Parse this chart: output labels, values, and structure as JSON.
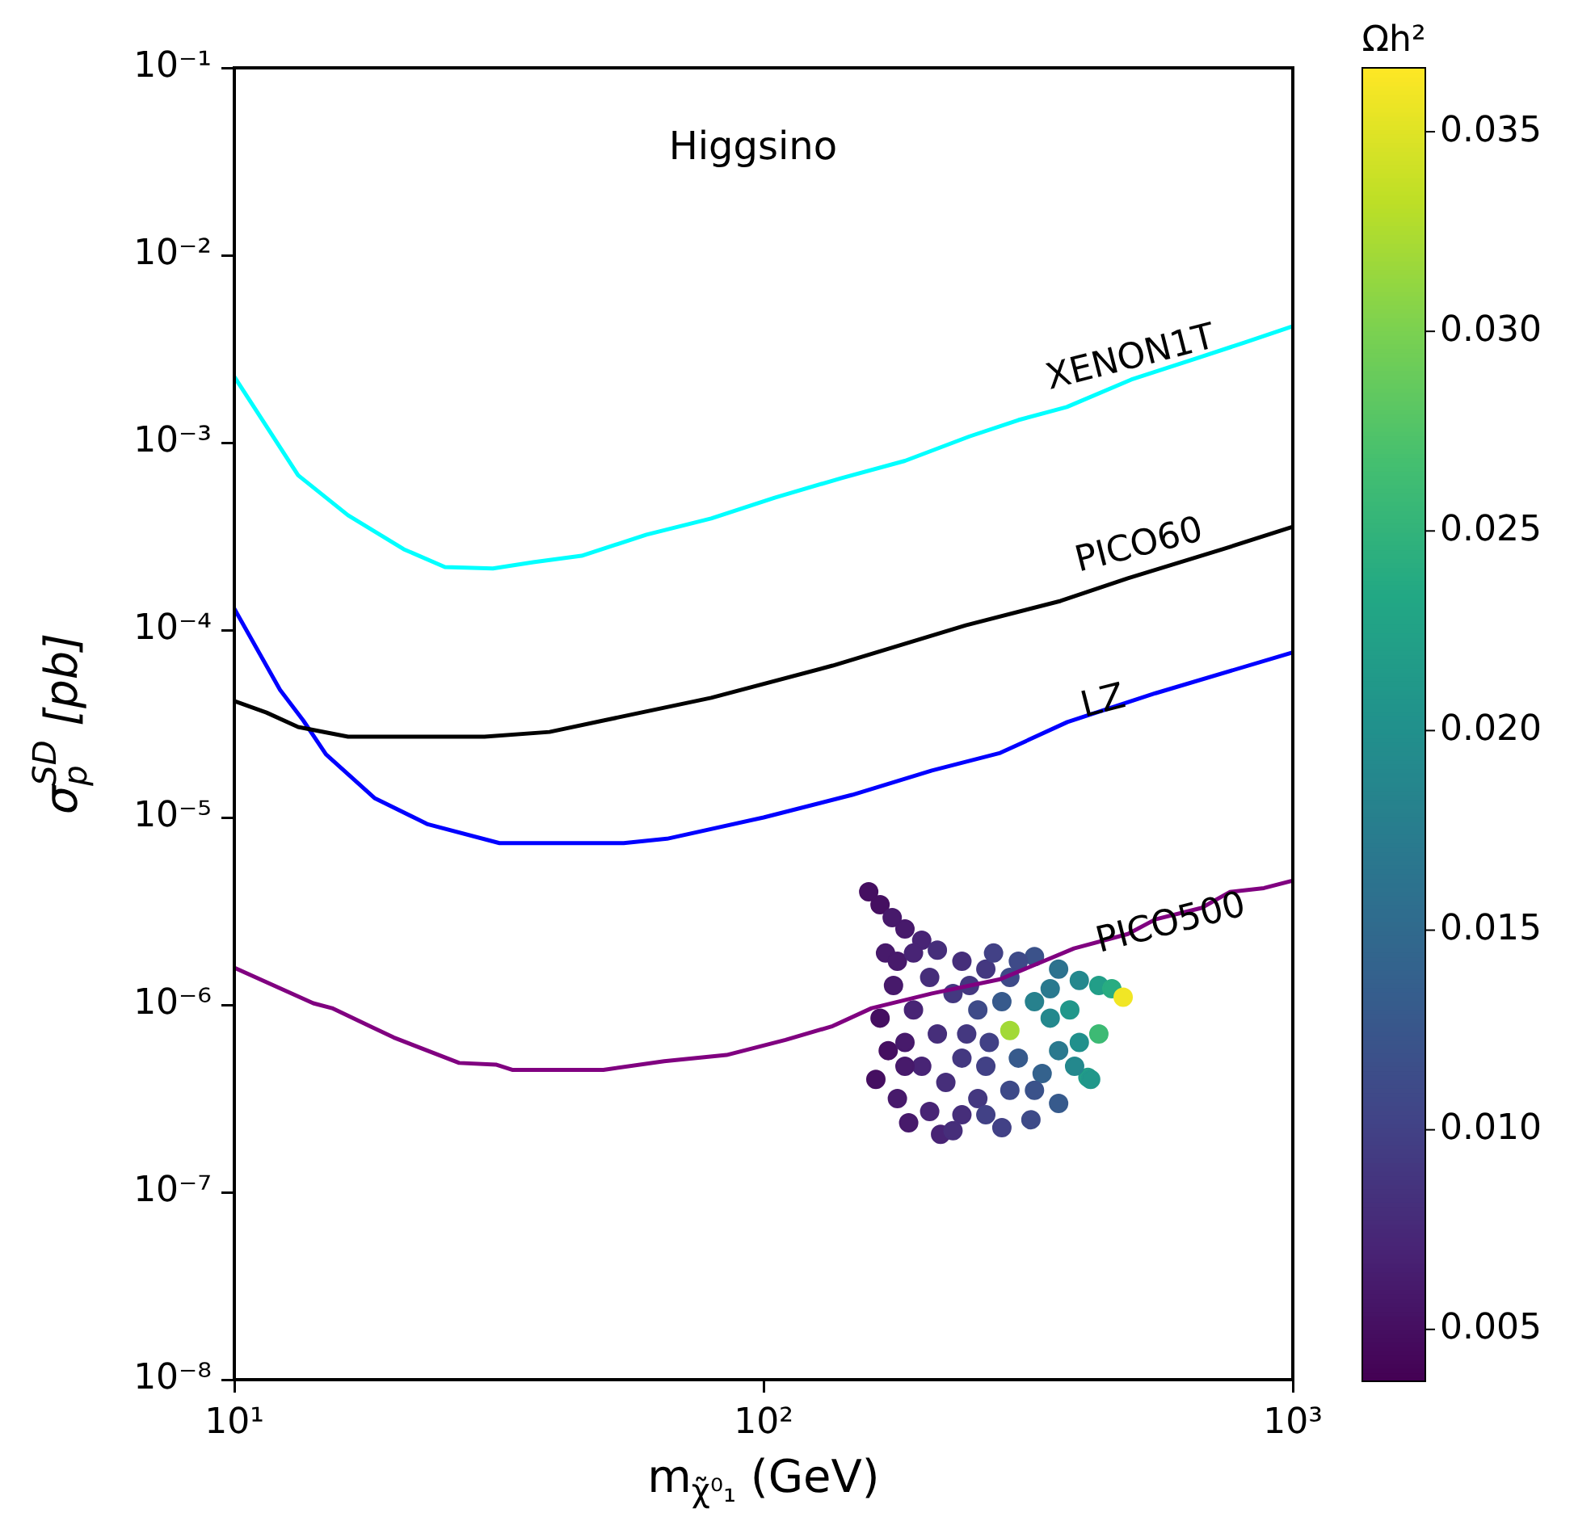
{
  "chart_data": {
    "type": "line",
    "log": "xy",
    "xlabel": "m$_{χ̃⁰₁}$ (GeV)",
    "ylabel": "σ$_{p}$$^{SD}$ [pb]",
    "clabel": "Ωh²",
    "xlim": [
      10,
      1000
    ],
    "xticks": [
      {
        "value": 10,
        "label": "10¹"
      },
      {
        "value": 100,
        "label": "10²"
      },
      {
        "value": 1000,
        "label": "10³"
      }
    ],
    "ylim": [
      1e-08,
      0.1
    ],
    "yticks": [
      {
        "value": 1e-08,
        "label": "10⁻⁸"
      },
      {
        "value": 1e-07,
        "label": "10⁻⁷"
      },
      {
        "value": 1e-06,
        "label": "10⁻⁶"
      },
      {
        "value": 1e-05,
        "label": "10⁻⁵"
      },
      {
        "value": 0.0001,
        "label": "10⁻⁴"
      },
      {
        "value": 0.001,
        "label": "10⁻³"
      },
      {
        "value": 0.01,
        "label": "10⁻²"
      },
      {
        "value": 0.1,
        "label": "10⁻¹"
      }
    ],
    "clim": [
      0.0037,
      0.0366
    ],
    "cticks": [
      0.005,
      {
        "value": 0.01,
        "label": "0.010"
      },
      0.015,
      {
        "value": 0.02,
        "label": "0.020"
      },
      0.025,
      {
        "value": 0.03,
        "label": "0.030"
      },
      0.035
    ],
    "grid": false,
    "legend": false,
    "annotations": [
      "Higgsino",
      "XENON1T",
      "PICO60",
      "LZ",
      "PICO500"
    ],
    "series": [
      {
        "color": "#00ffff",
        "x": [
          10,
          13.2,
          16.4,
          20.9,
          25,
          30.8,
          36.7,
          45.3,
          60.1,
          79.6,
          105,
          140,
          185,
          245,
          303,
          374,
          495,
          656,
          810,
          1000
        ],
        "values": [
          0.00225,
          0.00067,
          0.00041,
          0.00027,
          0.000217,
          0.000213,
          0.00023,
          0.000249,
          0.000323,
          0.000394,
          0.000509,
          0.000646,
          0.0008,
          0.00108,
          0.00132,
          0.00155,
          0.00217,
          0.00281,
          0.00342,
          0.00418
        ]
      },
      {
        "color": "#000000",
        "x": [
          10,
          11.5,
          13.2,
          16.4,
          29.7,
          39.4,
          49.8,
          79.6,
          135,
          241,
          364,
          488,
          737,
          1000
        ],
        "values": [
          4.18e-05,
          3.63e-05,
          3.04e-05,
          2.7e-05,
          2.7e-05,
          2.86e-05,
          3.29e-05,
          4.35e-05,
          6.46e-05,
          0.000106,
          0.000143,
          0.000189,
          0.00027,
          0.000356
        ]
      },
      {
        "color": "#0000ff",
        "x": [
          10,
          12.2,
          13.5,
          14.9,
          18.4,
          23.2,
          31.7,
          54.4,
          65.7,
          100,
          147,
          208,
          280,
          375,
          550,
          1000
        ],
        "values": [
          0.00013,
          4.8e-05,
          3.29e-05,
          2.17e-05,
          1.27e-05,
          9.2e-06,
          7.3e-06,
          7.3e-06,
          7.7e-06,
          1e-05,
          1.32e-05,
          1.78e-05,
          2.21e-05,
          3.23e-05,
          4.6e-05,
          7.6e-05
        ]
      },
      {
        "color": "#800080",
        "x": [
          10,
          14.1,
          15.3,
          20,
          26.6,
          31.2,
          33.5,
          49.8,
          64.9,
          85.1,
          110,
          135,
          160,
          208,
          280,
          386,
          488,
          550,
          672,
          760,
          882,
          1000
        ],
        "values": [
          1.58e-06,
          1.02e-06,
          9.6e-07,
          6.7e-07,
          4.9e-07,
          4.8e-07,
          4.5e-07,
          4.5e-07,
          5e-07,
          5.4e-07,
          6.5e-07,
          7.7e-07,
          9.6e-07,
          1.15e-06,
          1.37e-06,
          2e-06,
          2.39e-06,
          2.86e-06,
          3.29e-06,
          4e-06,
          4.2e-06,
          4.6e-06
        ]
      },
      {
        "type": "scatter",
        "marker": "circle",
        "x": [
          158,
          166,
          175,
          185,
          199,
          213,
          237,
          263,
          292,
          325,
          361,
          395,
          430,
          455,
          478,
          170,
          176,
          166,
          172,
          163,
          179,
          188,
          206,
          216,
          237,
          254,
          282,
          320,
          361,
          410,
          415,
          395,
          430,
          379,
          348,
          325,
          292,
          282,
          254,
          228,
          206,
          192,
          213,
          237,
          263,
          303,
          336,
          325,
          292,
          199,
          185,
          221,
          242,
          267,
          361,
          387,
          179,
          192,
          245,
          272,
          303,
          348,
          185,
          228,
          263
        ],
        "values": [
          4.01e-06,
          3.42e-06,
          2.92e-06,
          2.54e-06,
          2.21e-06,
          1.96e-06,
          1.71e-06,
          1.55e-06,
          1.4e-06,
          1.81e-06,
          1.55e-06,
          1.35e-06,
          1.27e-06,
          1.22e-06,
          1.1e-06,
          1.89e-06,
          1.27e-06,
          8.5e-07,
          5.7e-07,
          4e-07,
          3.16e-07,
          2.35e-07,
          2.7e-07,
          2.04e-07,
          2.59e-07,
          3.16e-07,
          2.21e-07,
          2.44e-07,
          2.98e-07,
          4.1e-07,
          4e-07,
          6.3e-07,
          7e-07,
          9.4e-07,
          8.5e-07,
          1.04e-06,
          7.3e-07,
          1.04e-06,
          9.4e-07,
          1.15e-06,
          1.4e-06,
          9.4e-07,
          7e-07,
          5.2e-07,
          4.7e-07,
          5.2e-07,
          4.3e-07,
          3.5e-07,
          3.5e-07,
          4.7e-07,
          6.3e-07,
          3.86e-07,
          7e-07,
          6.3e-07,
          5.7e-07,
          4.7e-07,
          1.71e-06,
          1.89e-06,
          1.27e-06,
          1.89e-06,
          1.71e-06,
          1.22e-06,
          4.7e-07,
          2.13e-07,
          2.59e-07
        ],
        "colors": [
          "#450f61",
          "#450f61",
          "#471a6b",
          "#471a6b",
          "#482475",
          "#462e7a",
          "#462e7a",
          "#443880",
          "#3e4a88",
          "#3b528a",
          "#2d728e",
          "#24888d",
          "#229e88",
          "#28ac81",
          "#f1e625",
          "#471a6b",
          "#471a6b",
          "#450f61",
          "#450f61",
          "#450f61",
          "#471a6b",
          "#471a6b",
          "#482475",
          "#482475",
          "#462e7a",
          "#443880",
          "#424186",
          "#3e4a88",
          "#375a8c",
          "#229e88",
          "#21978a",
          "#21908c",
          "#3dba74",
          "#21978a",
          "#24888d",
          "#27818d",
          "#a2d937",
          "#375a8c",
          "#3e4a88",
          "#443880",
          "#462e7a",
          "#482475",
          "#462e7a",
          "#443880",
          "#424186",
          "#375a8c",
          "#34628d",
          "#3b528a",
          "#3e4a88",
          "#482475",
          "#471a6b",
          "#462e7a",
          "#443880",
          "#424186",
          "#2a798e",
          "#24888d",
          "#471a6b",
          "#482475",
          "#443880",
          "#424186",
          "#3e4a88",
          "#2a798e",
          "#471a6b",
          "#462e7a",
          "#424186"
        ],
        "cvalues": [
          0.005,
          0.005,
          0.006,
          0.006,
          0.007,
          0.008,
          0.008,
          0.009,
          0.011,
          0.012,
          0.016,
          0.019,
          0.022,
          0.024,
          0.036,
          0.006,
          0.006,
          0.005,
          0.005,
          0.005,
          0.006,
          0.006,
          0.007,
          0.007,
          0.008,
          0.009,
          0.01,
          0.011,
          0.013,
          0.022,
          0.021,
          0.02,
          0.026,
          0.021,
          0.019,
          0.018,
          0.032,
          0.013,
          0.011,
          0.009,
          0.008,
          0.007,
          0.008,
          0.009,
          0.01,
          0.013,
          0.014,
          0.012,
          0.011,
          0.007,
          0.006,
          0.008,
          0.009,
          0.01,
          0.017,
          0.019,
          0.006,
          0.007,
          0.009,
          0.01,
          0.011,
          0.017,
          0.006,
          0.008,
          0.01
        ]
      }
    ]
  }
}
